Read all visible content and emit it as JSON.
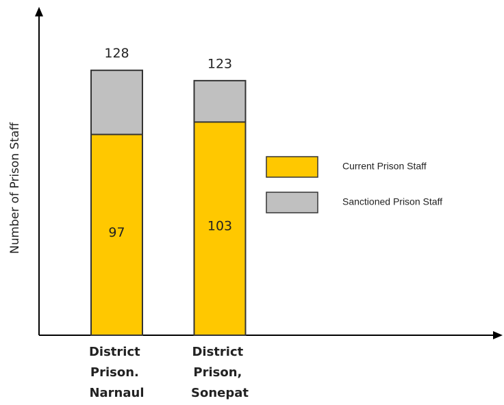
{
  "chart_data": {
    "type": "overlap-bar",
    "y_label": "Number of Prison Staff",
    "categories": [
      "District Prison. Narnaul",
      "District Prison, Sonepat"
    ],
    "series": [
      {
        "name": "Current Prison Staff",
        "color": "#ffc800",
        "values": [
          97,
          103
        ]
      },
      {
        "name": "Sanctioned Prison Staff",
        "color": "#c0c0c0",
        "values": [
          128,
          123
        ]
      }
    ],
    "ylim": [
      0,
      157
    ]
  }
}
